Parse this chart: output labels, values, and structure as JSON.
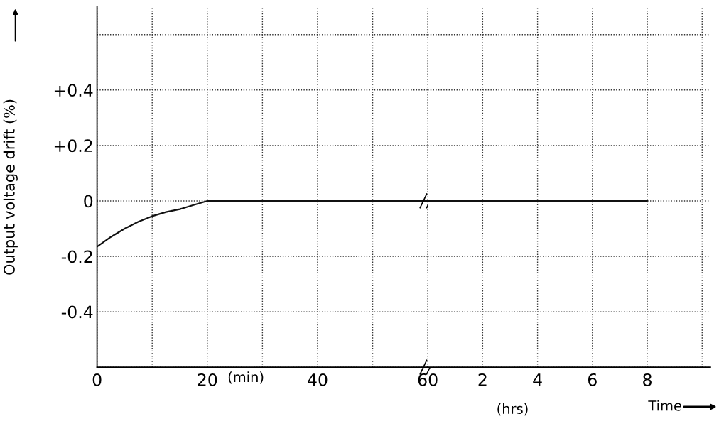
{
  "chart_data": [
    {
      "type": "line",
      "ylabel": "Output voltage drift (%)",
      "xlabel": "(min)",
      "xlim": [
        0,
        60
      ],
      "ylim": [
        -0.6,
        0.7
      ],
      "xticks": [
        0,
        {
          "value": 10,
          "label": null
        },
        20,
        {
          "value": 30,
          "label": null
        },
        40,
        {
          "value": 50,
          "label": null
        },
        60
      ],
      "yticks": [
        {
          "value": -0.6,
          "label": null
        },
        {
          "value": -0.4,
          "label": "-0.4"
        },
        {
          "value": -0.2,
          "label": "-0.2"
        },
        0,
        {
          "value": 0.2,
          "label": "+0.2"
        },
        {
          "value": 0.4,
          "label": "+0.4"
        },
        {
          "value": 0.6,
          "label": null
        }
      ],
      "grid": true,
      "series": [
        {
          "color": "#111111",
          "x": [
            0,
            2.5,
            5,
            7.5,
            10,
            12.5,
            15,
            17.5,
            20,
            30,
            40,
            50,
            60
          ],
          "values": [
            -0.165,
            -0.13,
            -0.1,
            -0.075,
            -0.055,
            -0.04,
            -0.03,
            -0.015,
            0,
            0,
            0,
            0,
            0
          ]
        }
      ]
    },
    {
      "type": "line",
      "xlabel": "(hrs)",
      "xlim": [
        0,
        10.3
      ],
      "ylim": [
        -0.6,
        0.7
      ],
      "tick_labels": "x",
      "xticks": [
        2,
        4,
        6,
        8,
        {
          "value": 10,
          "label": null
        }
      ],
      "yticks": [
        {
          "value": -0.6,
          "label": null
        },
        {
          "value": -0.4,
          "label": null
        },
        {
          "value": -0.2,
          "label": null
        },
        {
          "value": 0,
          "label": null
        },
        {
          "value": 0.2,
          "label": null
        },
        {
          "value": 0.4,
          "label": null
        },
        {
          "value": 0.6,
          "label": null
        }
      ],
      "grid": true,
      "annotations": [
        "Time"
      ],
      "series": [
        {
          "color": "#111111",
          "x": [
            0,
            2,
            4,
            6,
            8
          ],
          "values": [
            0,
            0,
            0,
            0,
            0
          ]
        }
      ]
    }
  ]
}
